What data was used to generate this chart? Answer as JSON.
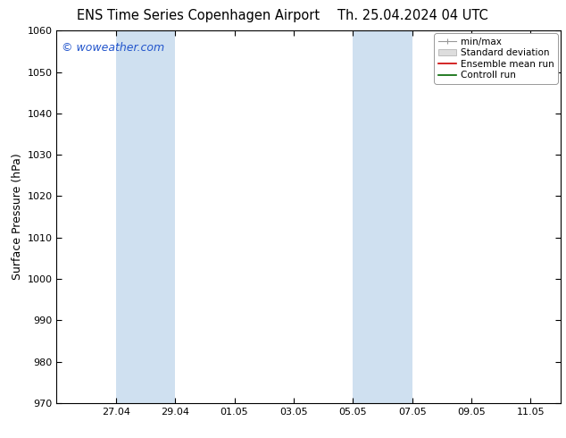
{
  "title_left": "ENS Time Series Copenhagen Airport",
  "title_right": "Th. 25.04.2024 04 UTC",
  "ylabel": "Surface Pressure (hPa)",
  "ylim": [
    970,
    1060
  ],
  "yticks": [
    970,
    980,
    990,
    1000,
    1010,
    1020,
    1030,
    1040,
    1050,
    1060
  ],
  "xlim_start": "2024-04-25",
  "xlim_end": "2024-05-12",
  "xtick_labels": [
    "27.04",
    "29.04",
    "01.05",
    "03.05",
    "05.05",
    "07.05",
    "09.05",
    "11.05"
  ],
  "xtick_dates": [
    "2024-04-27",
    "2024-04-29",
    "2024-05-01",
    "2024-05-03",
    "2024-05-05",
    "2024-05-07",
    "2024-05-09",
    "2024-05-11"
  ],
  "shaded_bands": [
    {
      "start": "2024-04-27",
      "end": "2024-04-29"
    },
    {
      "start": "2024-05-05",
      "end": "2024-05-07"
    }
  ],
  "shade_color": "#cfe0f0",
  "watermark": "© woweather.com",
  "watermark_color": "#2255cc",
  "legend_entries": [
    "min/max",
    "Standard deviation",
    "Ensemble mean run",
    "Controll run"
  ],
  "legend_line_colors": [
    "#aaaaaa",
    "#cccccc",
    "#cc0000",
    "#006600"
  ],
  "bg_color": "#ffffff",
  "plot_bg_color": "#ffffff",
  "spine_color": "#000000",
  "title_fontsize": 10.5,
  "tick_fontsize": 8,
  "ylabel_fontsize": 9,
  "watermark_fontsize": 9,
  "legend_fontsize": 7.5
}
